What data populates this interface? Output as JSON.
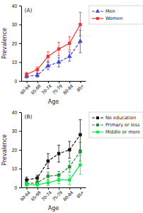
{
  "chart_data": [
    {
      "type": "line",
      "annotation": "(A)",
      "xlabel": "Age",
      "ylabel": "Prevalence",
      "categories": [
        "60-64",
        "65-69",
        "70-74",
        "75-79",
        "80-84",
        "85+"
      ],
      "ylim": [
        0,
        40
      ],
      "yticks": [
        0,
        10,
        20,
        30,
        40
      ],
      "grid": false,
      "legend": "right",
      "series": [
        {
          "name": "Men",
          "color": "#4444cc",
          "marker": "triangle",
          "line_style": "dashed",
          "values": [
            2.5,
            3.0,
            8.0,
            10.0,
            13.0,
            21.0
          ],
          "ci_lo": [
            1.5,
            2.0,
            6.0,
            7.5,
            10.5,
            15.0
          ],
          "ci_hi": [
            3.5,
            4.0,
            10.0,
            12.5,
            15.5,
            27.0
          ]
        },
        {
          "name": "Women",
          "color": "#ee3333",
          "marker": "square",
          "line_style": "solid",
          "values": [
            3.5,
            6.0,
            13.0,
            17.0,
            20.0,
            30.0
          ],
          "ci_lo": [
            2.5,
            4.5,
            10.5,
            13.5,
            16.5,
            24.0
          ],
          "ci_hi": [
            4.5,
            7.5,
            15.5,
            20.5,
            23.5,
            36.5
          ]
        }
      ]
    },
    {
      "type": "line",
      "annotation": "(B)",
      "xlabel": "Age",
      "ylabel": "Prevalence",
      "categories": [
        "60-64",
        "65-69",
        "70-74",
        "75-79",
        "80-84",
        "85+"
      ],
      "ylim": [
        0,
        40
      ],
      "yticks": [
        0,
        10,
        20,
        30,
        40
      ],
      "grid": false,
      "legend": "right",
      "series": [
        {
          "name": "No education",
          "color": "#111111",
          "marker": "square",
          "line_style": "dashed",
          "values": [
            4.0,
            5.0,
            14.0,
            18.0,
            20.0,
            28.0
          ],
          "ci_lo": [
            2.5,
            3.5,
            10.0,
            13.5,
            15.5,
            20.0
          ],
          "ci_hi": [
            5.5,
            6.5,
            18.0,
            22.5,
            24.5,
            36.0
          ]
        },
        {
          "name": "Primary or less",
          "color": "#228833",
          "marker": "square",
          "line_style": "dashed",
          "values": [
            2.0,
            2.5,
            6.0,
            6.5,
            11.0,
            19.0
          ],
          "ci_lo": [
            1.0,
            1.5,
            4.0,
            4.5,
            8.0,
            14.0
          ],
          "ci_hi": [
            3.0,
            3.5,
            8.0,
            8.5,
            14.0,
            24.0
          ]
        },
        {
          "name": "Middle or more",
          "color": "#00ee44",
          "marker": "circle",
          "line_style": "solid",
          "values": [
            1.5,
            1.5,
            2.5,
            4.0,
            4.0,
            12.0
          ],
          "ci_lo": [
            0.5,
            0.5,
            1.0,
            2.0,
            1.5,
            7.0
          ],
          "ci_hi": [
            2.5,
            2.5,
            4.0,
            6.0,
            6.5,
            17.0
          ]
        }
      ]
    }
  ]
}
